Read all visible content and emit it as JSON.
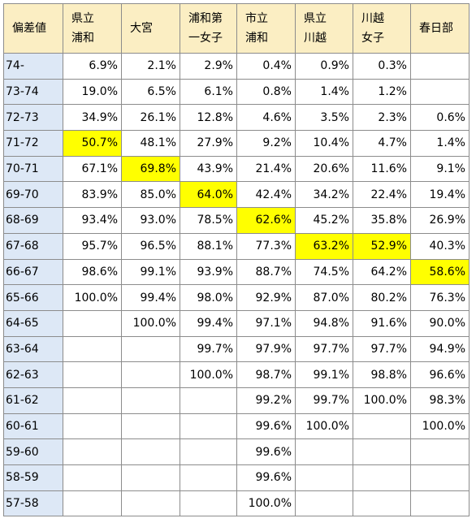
{
  "header": {
    "band_label": "偏差値",
    "schools": [
      {
        "line1": "県立",
        "line2": "浦和"
      },
      {
        "line1": "大宮",
        "line2": ""
      },
      {
        "line1": "浦和第",
        "line2": "一女子"
      },
      {
        "line1": "市立",
        "line2": "浦和"
      },
      {
        "line1": "県立",
        "line2": "川越"
      },
      {
        "line1": "川越",
        "line2": "女子"
      },
      {
        "line1": "春日部",
        "line2": ""
      }
    ]
  },
  "highlight_color": "#ffff00",
  "header_color": "#fbeec3",
  "band_color": "#dde8f6",
  "rows": [
    {
      "band": "74-",
      "values": [
        "6.9%",
        "2.1%",
        "2.9%",
        "0.4%",
        "0.9%",
        "0.3%",
        ""
      ],
      "highlight": -1
    },
    {
      "band": "73-74",
      "values": [
        "19.0%",
        "6.5%",
        "6.1%",
        "0.8%",
        "1.4%",
        "1.2%",
        ""
      ],
      "highlight": -1
    },
    {
      "band": "72-73",
      "values": [
        "34.9%",
        "26.1%",
        "12.8%",
        "4.6%",
        "3.5%",
        "2.3%",
        "0.6%"
      ],
      "highlight": -1
    },
    {
      "band": "71-72",
      "values": [
        "50.7%",
        "48.1%",
        "27.9%",
        "9.2%",
        "10.4%",
        "4.7%",
        "1.4%"
      ],
      "highlight": 0
    },
    {
      "band": "70-71",
      "values": [
        "67.1%",
        "69.8%",
        "43.9%",
        "21.4%",
        "20.6%",
        "11.6%",
        "9.1%"
      ],
      "highlight": 1
    },
    {
      "band": "69-70",
      "values": [
        "83.9%",
        "85.0%",
        "64.0%",
        "42.4%",
        "34.2%",
        "22.4%",
        "19.4%"
      ],
      "highlight": 2
    },
    {
      "band": "68-69",
      "values": [
        "93.4%",
        "93.0%",
        "78.5%",
        "62.6%",
        "45.2%",
        "35.8%",
        "26.9%"
      ],
      "highlight": 3
    },
    {
      "band": "67-68",
      "values": [
        "95.7%",
        "96.5%",
        "88.1%",
        "77.3%",
        "63.2%",
        "52.9%",
        "40.3%"
      ],
      "highlight": [
        4,
        5
      ]
    },
    {
      "band": "66-67",
      "values": [
        "98.6%",
        "99.1%",
        "93.9%",
        "88.7%",
        "74.5%",
        "64.2%",
        "58.6%"
      ],
      "highlight": 6
    },
    {
      "band": "65-66",
      "values": [
        "100.0%",
        "99.4%",
        "98.0%",
        "92.9%",
        "87.0%",
        "80.2%",
        "76.3%"
      ],
      "highlight": -1
    },
    {
      "band": "64-65",
      "values": [
        "",
        "100.0%",
        "99.4%",
        "97.1%",
        "94.8%",
        "91.6%",
        "90.0%"
      ],
      "highlight": -1
    },
    {
      "band": "63-64",
      "values": [
        "",
        "",
        "99.7%",
        "97.9%",
        "97.7%",
        "97.7%",
        "94.9%"
      ],
      "highlight": -1
    },
    {
      "band": "62-63",
      "values": [
        "",
        "",
        "100.0%",
        "98.7%",
        "99.1%",
        "98.8%",
        "96.6%"
      ],
      "highlight": -1
    },
    {
      "band": "61-62",
      "values": [
        "",
        "",
        "",
        "99.2%",
        "99.7%",
        "100.0%",
        "98.3%"
      ],
      "highlight": -1
    },
    {
      "band": "60-61",
      "values": [
        "",
        "",
        "",
        "99.6%",
        "100.0%",
        "",
        "100.0%"
      ],
      "highlight": -1
    },
    {
      "band": "59-60",
      "values": [
        "",
        "",
        "",
        "99.6%",
        "",
        "",
        ""
      ],
      "highlight": -1
    },
    {
      "band": "58-59",
      "values": [
        "",
        "",
        "",
        "99.6%",
        "",
        "",
        ""
      ],
      "highlight": -1
    },
    {
      "band": "57-58",
      "values": [
        "",
        "",
        "",
        "100.0%",
        "",
        "",
        ""
      ],
      "highlight": -1
    }
  ]
}
